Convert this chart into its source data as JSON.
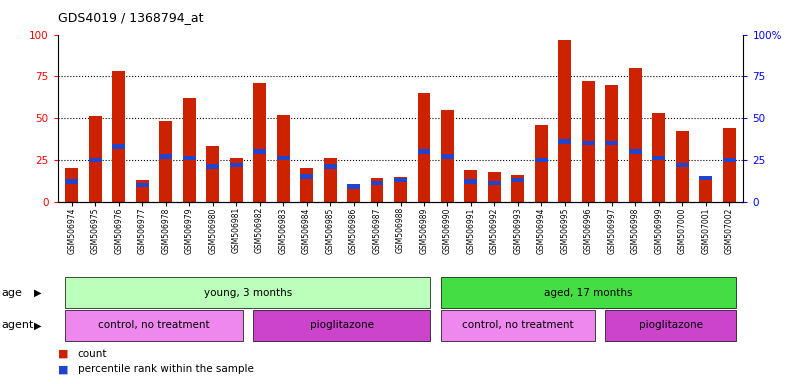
{
  "title": "GDS4019 / 1368794_at",
  "samples": [
    "GSM506974",
    "GSM506975",
    "GSM506976",
    "GSM506977",
    "GSM506978",
    "GSM506979",
    "GSM506980",
    "GSM506981",
    "GSM506982",
    "GSM506983",
    "GSM506984",
    "GSM506985",
    "GSM506986",
    "GSM506987",
    "GSM506988",
    "GSM506989",
    "GSM506990",
    "GSM506991",
    "GSM506992",
    "GSM506993",
    "GSM506994",
    "GSM506995",
    "GSM506996",
    "GSM506997",
    "GSM506998",
    "GSM506999",
    "GSM507000",
    "GSM507001",
    "GSM507002"
  ],
  "counts": [
    20,
    51,
    78,
    13,
    48,
    62,
    33,
    26,
    71,
    52,
    20,
    26,
    10,
    14,
    15,
    65,
    55,
    19,
    18,
    16,
    46,
    97,
    72,
    70,
    80,
    53,
    42,
    13,
    44
  ],
  "percentile_ranks": [
    12,
    25,
    33,
    10,
    27,
    26,
    21,
    22,
    30,
    26,
    15,
    21,
    9,
    11,
    13,
    30,
    27,
    12,
    11,
    13,
    25,
    36,
    35,
    35,
    30,
    26,
    22,
    14,
    25
  ],
  "bar_color": "#cc2200",
  "pct_color": "#2244cc",
  "ylim_left": [
    0,
    100
  ],
  "ylim_right": [
    0,
    100
  ],
  "yticks": [
    0,
    25,
    50,
    75,
    100
  ],
  "ytick_labels_right": [
    "0",
    "25",
    "50",
    "75",
    "100%"
  ],
  "groups_age": [
    {
      "label": "young, 3 months",
      "start": 0,
      "end": 15,
      "color": "#bbffbb"
    },
    {
      "label": "aged, 17 months",
      "start": 16,
      "end": 28,
      "color": "#44dd44"
    }
  ],
  "groups_agent": [
    {
      "label": "control, no treatment",
      "start": 0,
      "end": 7,
      "color": "#ee88ee"
    },
    {
      "label": "pioglitazone",
      "start": 8,
      "end": 15,
      "color": "#cc44cc"
    },
    {
      "label": "control, no treatment",
      "start": 16,
      "end": 22,
      "color": "#ee88ee"
    },
    {
      "label": "pioglitazone",
      "start": 23,
      "end": 28,
      "color": "#cc44cc"
    }
  ],
  "legend_items": [
    {
      "label": "count",
      "color": "#cc2200"
    },
    {
      "label": "percentile rank within the sample",
      "color": "#2244cc"
    }
  ],
  "plot_bg": "#ffffff",
  "bar_width": 0.55
}
